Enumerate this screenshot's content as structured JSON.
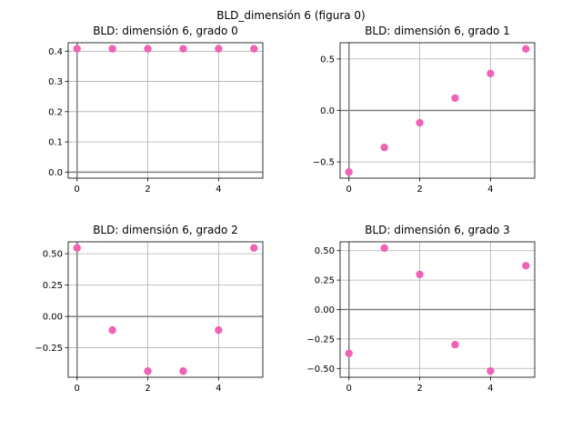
{
  "figure_title": "BLD_dimensión 6 (figura 0)",
  "point_color": "#f062b6",
  "axis_line_color": "#808080",
  "grid_color": "#b0b0b0",
  "chart_data": [
    {
      "type": "scatter",
      "title": "BLD: dimensión 6, grado 0",
      "x": [
        0,
        1,
        2,
        3,
        4,
        5
      ],
      "y": [
        0.408,
        0.408,
        0.408,
        0.408,
        0.408,
        0.408
      ],
      "xlim": [
        -0.25,
        5.25
      ],
      "ylim": [
        -0.02,
        0.428
      ],
      "xticks": [
        0,
        2,
        4
      ],
      "xtick_labels": [
        "0",
        "2",
        "4"
      ],
      "yticks": [
        0.0,
        0.1,
        0.2,
        0.3,
        0.4
      ],
      "ytick_labels": [
        "0.0",
        "0.1",
        "0.2",
        "0.3",
        "0.4"
      ],
      "grid": true
    },
    {
      "type": "scatter",
      "title": "BLD: dimensión 6, grado 1",
      "x": [
        0,
        1,
        2,
        3,
        4,
        5
      ],
      "y": [
        -0.598,
        -0.359,
        -0.12,
        0.12,
        0.359,
        0.598
      ],
      "xlim": [
        -0.25,
        5.25
      ],
      "ylim": [
        -0.658,
        0.658
      ],
      "xticks": [
        0,
        2,
        4
      ],
      "xtick_labels": [
        "0",
        "2",
        "4"
      ],
      "yticks": [
        -0.5,
        0.0,
        0.5
      ],
      "ytick_labels": [
        "−0.5",
        "0.0",
        "0.5"
      ],
      "grid": true
    },
    {
      "type": "scatter",
      "title": "BLD: dimensión 6, grado 2",
      "x": [
        0,
        1,
        2,
        3,
        4,
        5
      ],
      "y": [
        0.546,
        -0.109,
        -0.436,
        -0.436,
        -0.109,
        0.546
      ],
      "xlim": [
        -0.25,
        5.25
      ],
      "ylim": [
        -0.485,
        0.595
      ],
      "xticks": [
        0,
        2,
        4
      ],
      "xtick_labels": [
        "0",
        "2",
        "4"
      ],
      "yticks": [
        -0.25,
        0.0,
        0.25,
        0.5
      ],
      "ytick_labels": [
        "−0.25",
        "0.00",
        "0.25",
        "0.50"
      ],
      "grid": true
    },
    {
      "type": "scatter",
      "title": "BLD: dimensión 6, grado 3",
      "x": [
        0,
        1,
        2,
        3,
        4,
        5
      ],
      "y": [
        -0.372,
        0.522,
        0.298,
        -0.298,
        -0.522,
        0.372
      ],
      "xlim": [
        -0.25,
        5.25
      ],
      "ylim": [
        -0.575,
        0.575
      ],
      "xticks": [
        0,
        2,
        4
      ],
      "xtick_labels": [
        "0",
        "2",
        "4"
      ],
      "yticks": [
        -0.5,
        -0.25,
        0.0,
        0.25,
        0.5
      ],
      "ytick_labels": [
        "−0.50",
        "−0.25",
        "0.00",
        "0.25",
        "0.50"
      ],
      "grid": true
    }
  ]
}
